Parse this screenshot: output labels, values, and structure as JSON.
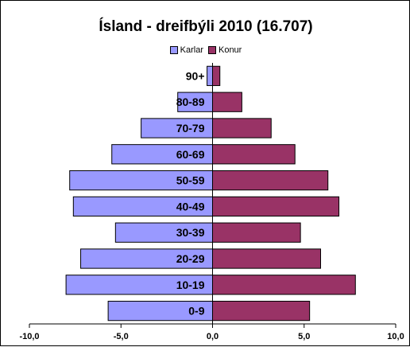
{
  "chart_data": {
    "type": "bar",
    "orientation": "horizontal-population-pyramid",
    "title": "Ísland - dreifbýli 2010 (16.707)",
    "categories": [
      "90+",
      "80-89",
      "70-79",
      "60-69",
      "50-59",
      "40-49",
      "30-39",
      "20-29",
      "10-19",
      "0-9"
    ],
    "series": [
      {
        "name": "Karlar",
        "color": "#9999ff",
        "values": [
          -0.3,
          -1.9,
          -3.9,
          -5.5,
          -7.8,
          -7.6,
          -5.3,
          -7.2,
          -8.0,
          -5.7
        ]
      },
      {
        "name": "Konur",
        "color": "#993366",
        "values": [
          0.4,
          1.6,
          3.2,
          4.5,
          6.3,
          6.9,
          4.8,
          5.9,
          7.8,
          5.3
        ]
      }
    ],
    "xlim": [
      -10,
      10
    ],
    "xticks": [
      "-10,0",
      "-5,0",
      "0,0",
      "5,0",
      "10,0"
    ],
    "legend_position": "top-center",
    "grid": false
  }
}
